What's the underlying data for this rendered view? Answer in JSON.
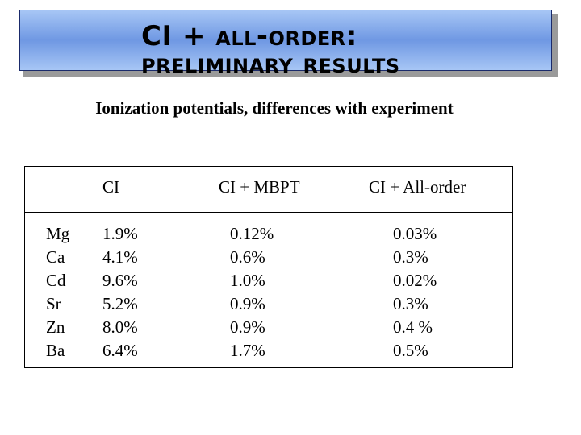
{
  "title": {
    "line1": "CI + all-order:",
    "line2": "preliminary results"
  },
  "subtitle": "Ionization potentials, differences with experiment",
  "table": {
    "headers": {
      "ci": "CI",
      "ci_mbpt": "CI + MBPT",
      "ci_all_order": "CI + All-order"
    },
    "elements": [
      "Mg",
      "Ca",
      "Cd",
      "Sr",
      "Zn",
      "Ba"
    ],
    "ci": [
      "1.9%",
      "4.1%",
      "9.6%",
      "5.2%",
      "8.0%",
      "6.4%"
    ],
    "ci_mbpt": [
      "0.12%",
      "0.6%",
      "1.0%",
      "0.9%",
      "0.9%",
      "1.7%"
    ],
    "ci_all_order": [
      "0.03%",
      "0.3%",
      "0.02%",
      "0.3%",
      "0.4 %",
      "0.5%"
    ]
  },
  "colors": {
    "banner_light": "#a7c6f5",
    "banner_dark": "#6f98e3",
    "banner_border": "#1a2a6a",
    "shadow": "#9a9a9a",
    "text": "#000000"
  }
}
